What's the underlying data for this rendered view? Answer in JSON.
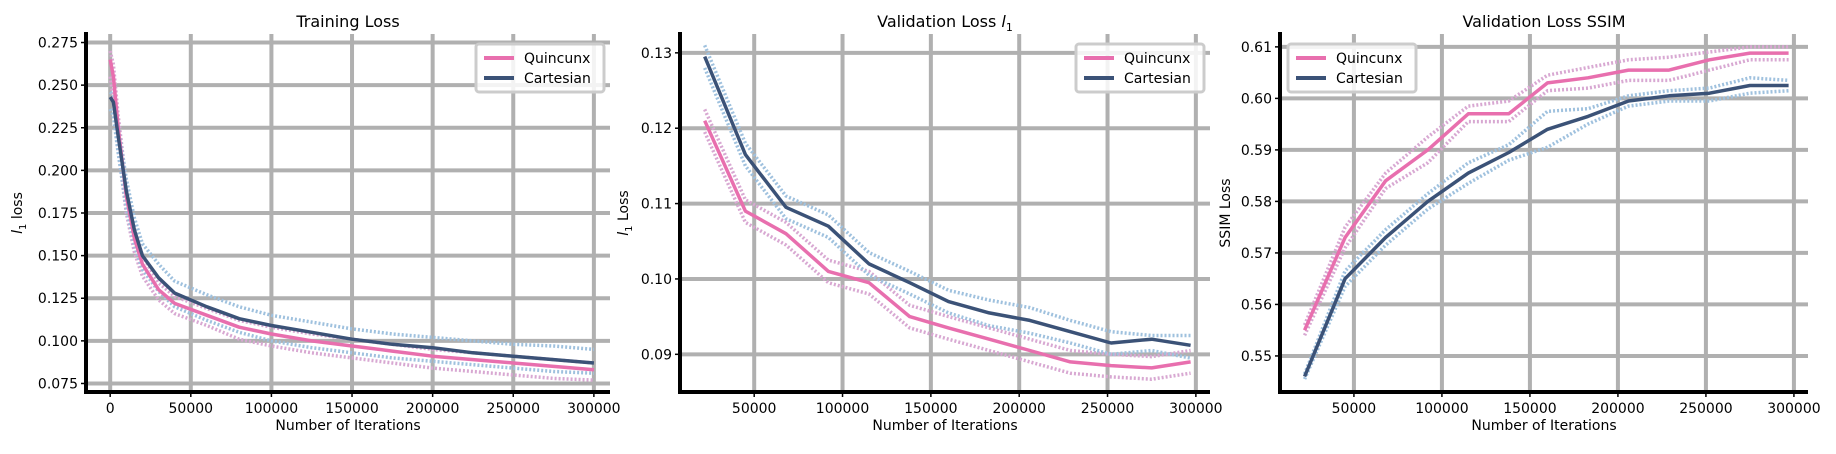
{
  "colors": {
    "quincunx": "#e86fae",
    "cartesian": "#3b5277",
    "quincunx_band": "#d8a8d2",
    "cartesian_band": "#9fc1de"
  },
  "chart_data": [
    {
      "type": "line",
      "title": "Training Loss",
      "xlabel": "Number of Iterations",
      "ylabel": "l1 loss",
      "ylabel_main": "l",
      "ylabel_sub": "1",
      "ylabel_rest": " loss",
      "xlim": [
        -15000,
        310000
      ],
      "ylim": [
        0.07,
        0.28
      ],
      "xticks": [
        0,
        50000,
        100000,
        150000,
        200000,
        250000,
        300000
      ],
      "yticks": [
        0.075,
        0.1,
        0.125,
        0.15,
        0.175,
        0.2,
        0.225,
        0.25,
        0.275
      ],
      "ytick_labels": [
        "0.075",
        "0.100",
        "0.125",
        "0.150",
        "0.175",
        "0.200",
        "0.225",
        "0.250",
        "0.275"
      ],
      "grid": true,
      "legend_position": "top-right",
      "series": [
        {
          "name": "Quincunx",
          "key": "quincunx",
          "x": [
            0,
            2000,
            5000,
            10000,
            15000,
            20000,
            30000,
            40000,
            60000,
            80000,
            100000,
            125000,
            150000,
            175000,
            200000,
            225000,
            250000,
            275000,
            300000
          ],
          "values": [
            0.265,
            0.255,
            0.225,
            0.185,
            0.16,
            0.145,
            0.13,
            0.122,
            0.115,
            0.108,
            0.104,
            0.1,
            0.097,
            0.094,
            0.091,
            0.089,
            0.087,
            0.085,
            0.083
          ],
          "upper": [
            0.27,
            0.262,
            0.232,
            0.192,
            0.166,
            0.15,
            0.134,
            0.126,
            0.119,
            0.112,
            0.108,
            0.104,
            0.101,
            0.098,
            0.095,
            0.093,
            0.091,
            0.089,
            0.087
          ],
          "lower": [
            0.255,
            0.242,
            0.212,
            0.175,
            0.152,
            0.138,
            0.124,
            0.116,
            0.109,
            0.101,
            0.097,
            0.093,
            0.09,
            0.087,
            0.084,
            0.082,
            0.08,
            0.078,
            0.077
          ]
        },
        {
          "name": "Cartesian",
          "key": "cartesian",
          "x": [
            0,
            2000,
            5000,
            10000,
            15000,
            20000,
            30000,
            40000,
            60000,
            80000,
            100000,
            125000,
            150000,
            175000,
            200000,
            225000,
            250000,
            275000,
            300000
          ],
          "values": [
            0.243,
            0.24,
            0.22,
            0.188,
            0.165,
            0.15,
            0.137,
            0.128,
            0.12,
            0.113,
            0.109,
            0.105,
            0.101,
            0.098,
            0.096,
            0.093,
            0.091,
            0.089,
            0.087
          ],
          "upper": [
            0.246,
            0.244,
            0.226,
            0.195,
            0.172,
            0.157,
            0.145,
            0.135,
            0.127,
            0.12,
            0.115,
            0.111,
            0.107,
            0.104,
            0.102,
            0.1,
            0.098,
            0.097,
            0.095
          ],
          "lower": [
            0.236,
            0.232,
            0.21,
            0.178,
            0.156,
            0.142,
            0.129,
            0.12,
            0.112,
            0.105,
            0.1,
            0.096,
            0.093,
            0.09,
            0.088,
            0.086,
            0.084,
            0.082,
            0.081
          ]
        }
      ]
    },
    {
      "type": "line",
      "title": "Validation Loss l1",
      "title_main": "Validation Loss ",
      "title_var": "l",
      "title_sub": "1",
      "xlabel": "Number of Iterations",
      "ylabel": "l1 Loss",
      "ylabel_main": "l",
      "ylabel_sub": "1",
      "ylabel_rest": " Loss",
      "xlim": [
        8000,
        308000
      ],
      "ylim": [
        0.085,
        0.1325
      ],
      "xticks": [
        50000,
        100000,
        150000,
        200000,
        250000,
        300000
      ],
      "yticks": [
        0.09,
        0.1,
        0.11,
        0.12,
        0.13
      ],
      "ytick_labels": [
        "0.09",
        "0.10",
        "0.11",
        "0.12",
        "0.13"
      ],
      "grid": true,
      "legend_position": "top-right",
      "series": [
        {
          "name": "Quincunx",
          "key": "quincunx",
          "x": [
            22000,
            45000,
            68000,
            92000,
            115000,
            138000,
            160000,
            183000,
            206000,
            229000,
            252000,
            275000,
            297000
          ],
          "values": [
            0.121,
            0.109,
            0.106,
            0.101,
            0.0995,
            0.095,
            0.0935,
            0.092,
            0.0905,
            0.089,
            0.0885,
            0.0882,
            0.089
          ],
          "upper": [
            0.1225,
            0.1105,
            0.1075,
            0.1025,
            0.101,
            0.0965,
            0.095,
            0.0935,
            0.092,
            0.0905,
            0.09,
            0.0897,
            0.0905
          ],
          "lower": [
            0.1195,
            0.1075,
            0.1045,
            0.0995,
            0.098,
            0.0935,
            0.092,
            0.0905,
            0.089,
            0.0875,
            0.087,
            0.0867,
            0.0875
          ]
        },
        {
          "name": "Cartesian",
          "key": "cartesian",
          "x": [
            22000,
            45000,
            68000,
            92000,
            115000,
            138000,
            160000,
            183000,
            206000,
            229000,
            252000,
            275000,
            297000
          ],
          "values": [
            0.1295,
            0.1165,
            0.1095,
            0.107,
            0.102,
            0.0995,
            0.097,
            0.0955,
            0.0945,
            0.093,
            0.0915,
            0.092,
            0.0912
          ],
          "upper": [
            0.131,
            0.118,
            0.111,
            0.1085,
            0.1035,
            0.101,
            0.0985,
            0.0972,
            0.0962,
            0.0945,
            0.093,
            0.0925,
            0.0925
          ],
          "lower": [
            0.128,
            0.115,
            0.108,
            0.1055,
            0.1005,
            0.098,
            0.0955,
            0.0938,
            0.0928,
            0.0915,
            0.09,
            0.0905,
            0.0895
          ]
        }
      ]
    },
    {
      "type": "line",
      "title": "Validation Loss SSIM",
      "xlabel": "Number of Iterations",
      "ylabel": "SSIM Loss",
      "xlim": [
        8000,
        308000
      ],
      "ylim": [
        0.543,
        0.6125
      ],
      "xticks": [
        50000,
        100000,
        150000,
        200000,
        250000,
        300000
      ],
      "yticks": [
        0.55,
        0.56,
        0.57,
        0.58,
        0.59,
        0.6,
        0.61
      ],
      "ytick_labels": [
        "0.55",
        "0.56",
        "0.57",
        "0.58",
        "0.59",
        "0.60",
        "0.61"
      ],
      "grid": true,
      "legend_position": "top-left",
      "series": [
        {
          "name": "Quincunx",
          "key": "quincunx",
          "x": [
            22000,
            45000,
            68000,
            92000,
            115000,
            138000,
            160000,
            183000,
            206000,
            229000,
            252000,
            275000,
            297000
          ],
          "values": [
            0.555,
            0.573,
            0.584,
            0.59,
            0.597,
            0.597,
            0.603,
            0.604,
            0.6055,
            0.6055,
            0.6075,
            0.6088,
            0.6088
          ],
          "upper": [
            0.556,
            0.575,
            0.5855,
            0.5925,
            0.5985,
            0.5995,
            0.6045,
            0.606,
            0.6075,
            0.608,
            0.609,
            0.61,
            0.61
          ],
          "lower": [
            0.554,
            0.571,
            0.5825,
            0.5875,
            0.5955,
            0.5955,
            0.6015,
            0.602,
            0.6035,
            0.6035,
            0.6055,
            0.6075,
            0.6075
          ]
        },
        {
          "name": "Cartesian",
          "key": "cartesian",
          "x": [
            22000,
            45000,
            68000,
            92000,
            115000,
            138000,
            160000,
            183000,
            206000,
            229000,
            252000,
            275000,
            297000
          ],
          "values": [
            0.546,
            0.565,
            0.573,
            0.58,
            0.5855,
            0.5895,
            0.594,
            0.5965,
            0.5995,
            0.6005,
            0.601,
            0.6025,
            0.6025
          ],
          "upper": [
            0.5465,
            0.5665,
            0.5745,
            0.5815,
            0.5875,
            0.591,
            0.5975,
            0.598,
            0.6005,
            0.6015,
            0.602,
            0.604,
            0.6035
          ],
          "lower": [
            0.5455,
            0.5635,
            0.5715,
            0.5785,
            0.5835,
            0.588,
            0.5905,
            0.595,
            0.5985,
            0.5995,
            0.5995,
            0.601,
            0.6015
          ]
        }
      ]
    }
  ]
}
